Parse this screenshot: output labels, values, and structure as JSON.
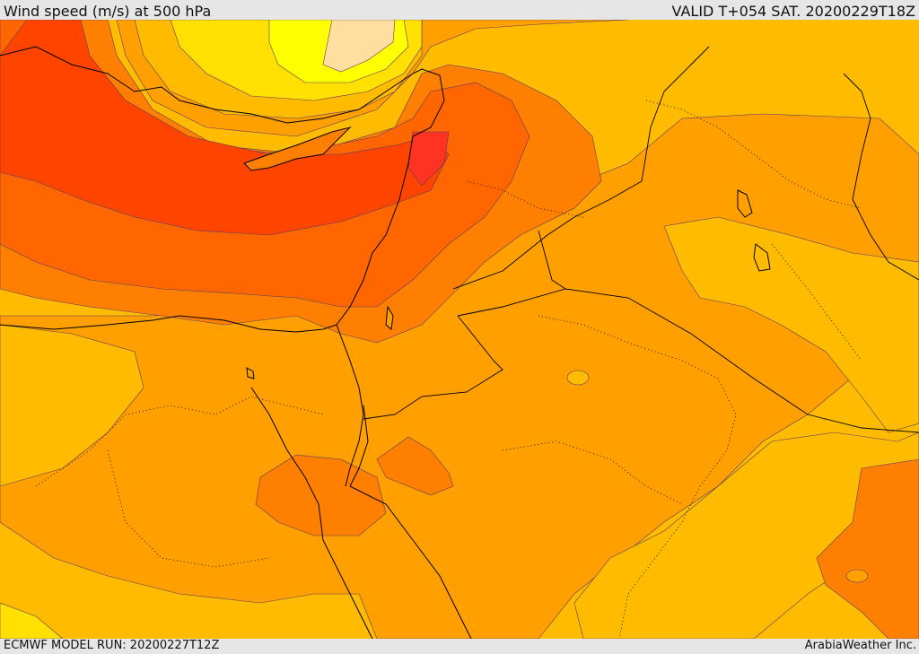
{
  "header": {
    "title": "Wind speed (m/s) at 500 hPa",
    "valid_time": "VALID T+054 SAT. 20200229T18Z"
  },
  "footer": {
    "model_run": "ECMWF MODEL RUN: 20200227T12Z",
    "credit": "ArabiaWeather Inc."
  },
  "map": {
    "field": "wind speed at 500 hPa",
    "unit": "m/s",
    "region": "Eastern Mediterranean, Levant, Egypt, Arabian Peninsula",
    "colors": {
      "background_band": "#ffbb00",
      "weak": "#ffe000",
      "very_weak": "#ffff00",
      "minimum": "#ffdf9f",
      "moderate": "#ff9f00",
      "strong": "#ff7f00",
      "stronger": "#ff6000",
      "jet_core": "#ff4400",
      "jet_max": "#ff3322",
      "coastline": "#000000",
      "contour_line": "#5a3c64"
    }
  }
}
